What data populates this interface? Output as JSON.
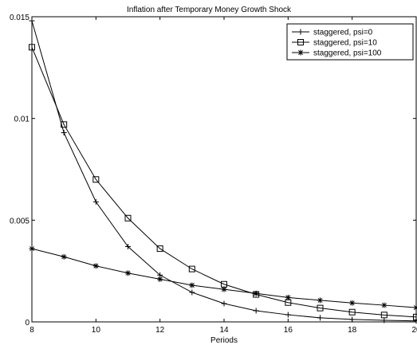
{
  "chart_data": {
    "type": "line",
    "title": "Inflation after Temporary Money Growth Shock",
    "xlabel": "Periods",
    "ylabel": "",
    "xlim": [
      8,
      20
    ],
    "ylim": [
      0,
      0.015
    ],
    "xticks": [
      "8",
      "10",
      "12",
      "14",
      "16",
      "18",
      "20"
    ],
    "yticks": [
      "0",
      "0.005",
      "0.01",
      "0.015"
    ],
    "grid": false,
    "legend_position": "top-right",
    "x": [
      8,
      9,
      10,
      11,
      12,
      13,
      14,
      15,
      16,
      17,
      18,
      19,
      20
    ],
    "series": [
      {
        "name": "staggered, psi=0",
        "marker": "plus",
        "values": [
          0.0148,
          0.0093,
          0.0059,
          0.0037,
          0.0023,
          0.00145,
          0.0009,
          0.00055,
          0.00035,
          0.0002,
          0.00012,
          8e-05,
          5e-05
        ]
      },
      {
        "name": "staggered, psi=10",
        "marker": "square",
        "values": [
          0.0135,
          0.0097,
          0.007,
          0.0051,
          0.0036,
          0.0026,
          0.00185,
          0.00135,
          0.00095,
          0.00068,
          0.00048,
          0.00034,
          0.00024
        ]
      },
      {
        "name": "staggered, psi=100",
        "marker": "asterisk",
        "values": [
          0.0036,
          0.0032,
          0.00275,
          0.0024,
          0.0021,
          0.0018,
          0.0016,
          0.0014,
          0.0012,
          0.00106,
          0.00093,
          0.00082,
          0.0007
        ]
      }
    ]
  }
}
